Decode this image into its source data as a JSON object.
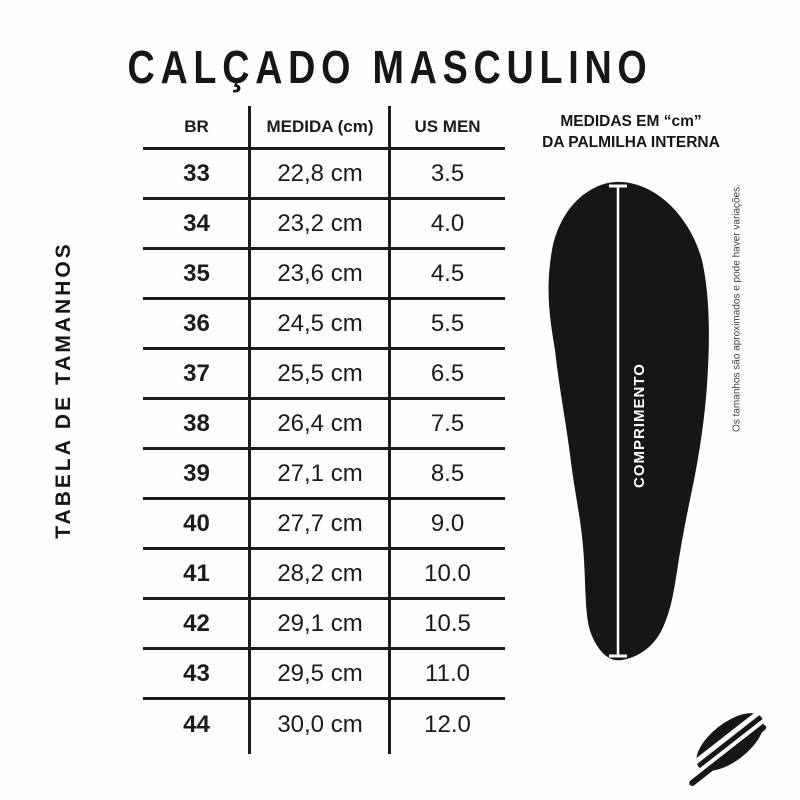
{
  "page": {
    "title": "CALÇADO MASCULINO",
    "side_label": "TABELA DE TAMANHOS"
  },
  "table": {
    "columns": [
      "BR",
      "MEDIDA (cm)",
      "US MEN"
    ],
    "rows": [
      [
        "33",
        "22,8 cm",
        "3.5"
      ],
      [
        "34",
        "23,2 cm",
        "4.0"
      ],
      [
        "35",
        "23,6 cm",
        "4.5"
      ],
      [
        "36",
        "24,5 cm",
        "5.5"
      ],
      [
        "37",
        "25,5 cm",
        "6.5"
      ],
      [
        "38",
        "26,4 cm",
        "7.5"
      ],
      [
        "39",
        "27,1 cm",
        "8.5"
      ],
      [
        "40",
        "27,7 cm",
        "9.0"
      ],
      [
        "41",
        "28,2 cm",
        "10.0"
      ],
      [
        "42",
        "29,1 cm",
        "10.5"
      ],
      [
        "43",
        "29,5 cm",
        "11.0"
      ],
      [
        "44",
        "30,0 cm",
        "12.0"
      ]
    ]
  },
  "insole": {
    "heading_line1": "MEDIDAS EM “cm”",
    "heading_line2": "DA PALMILHA INTERNA",
    "measure_label": "COMPRIMENTO",
    "note": "Os tamanhos são aproximados e pode haver variações."
  },
  "colors": {
    "ink": "#1b1b1b",
    "background": "#fdfdfd",
    "note_gray": "#3f3f3f"
  }
}
